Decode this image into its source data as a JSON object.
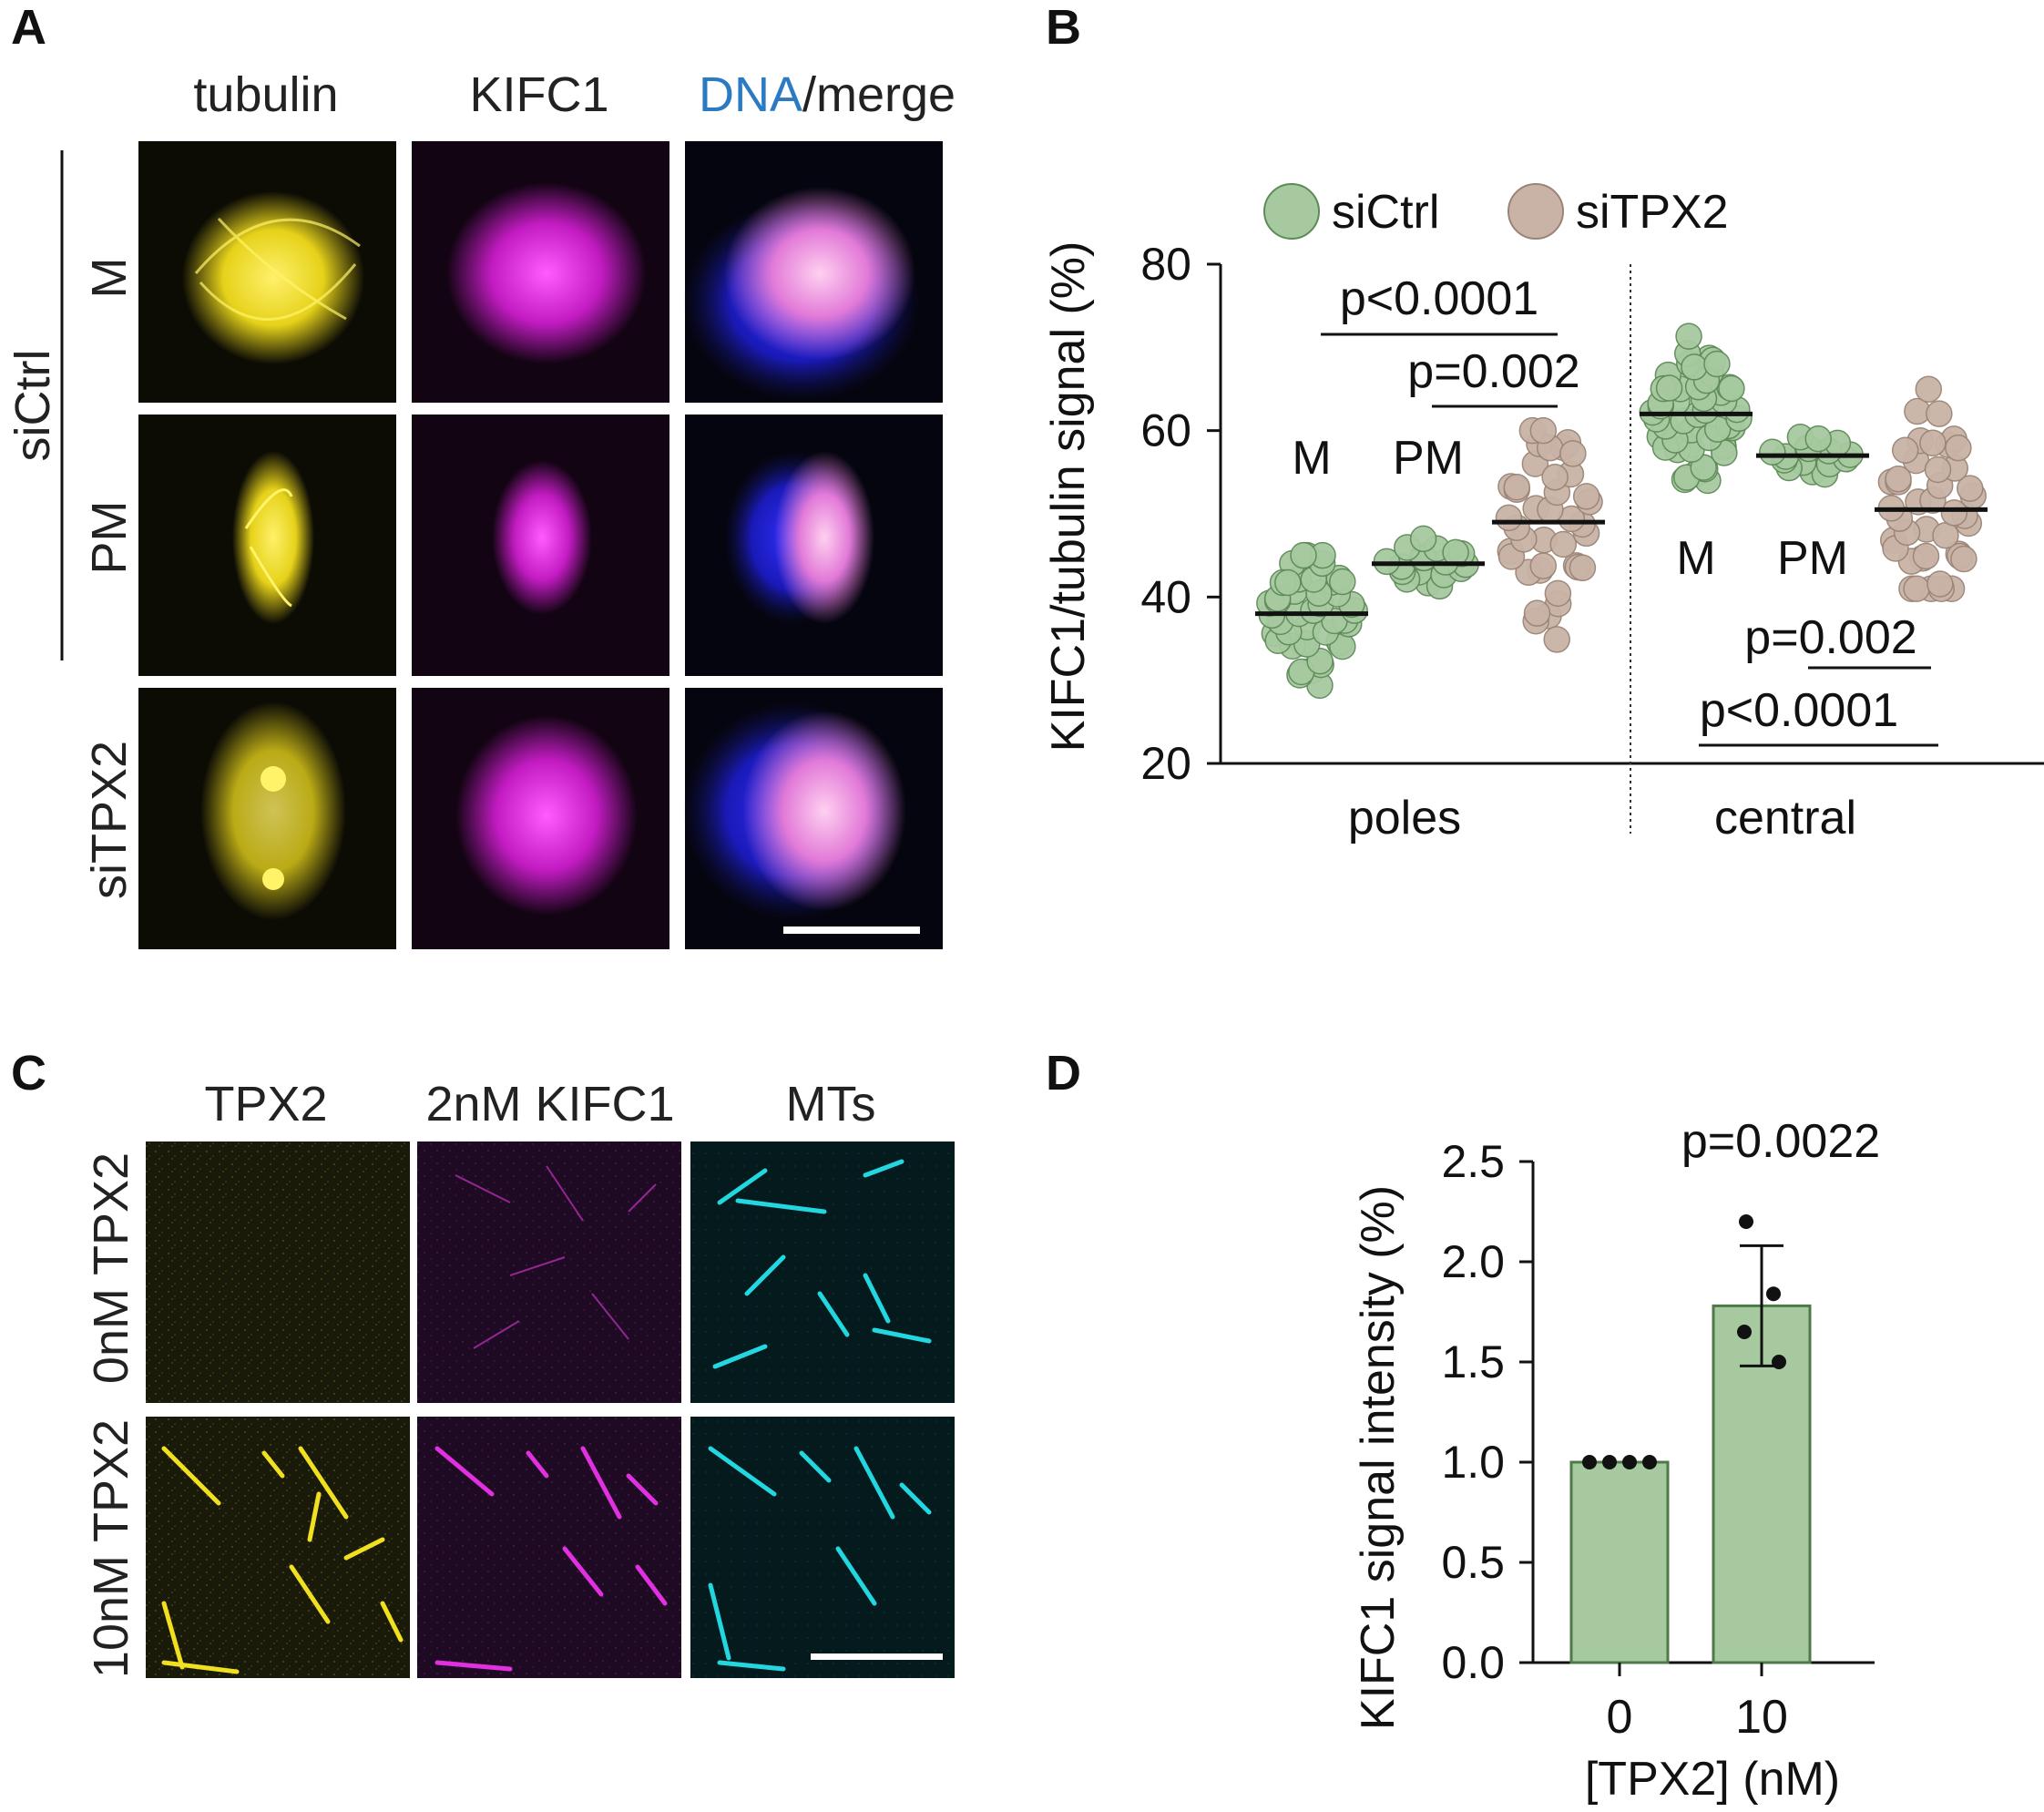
{
  "panels": {
    "a": {
      "letter": "A",
      "columns": [
        "tubulin",
        "KIFC1",
        "DNA",
        "/merge"
      ],
      "rows": {
        "group": "siCtrl",
        "sub": [
          "M",
          "PM"
        ],
        "third": "siTPX2"
      }
    },
    "b": {
      "letter": "B"
    },
    "c": {
      "letter": "C",
      "columns": [
        "TPX2",
        "2nM KIFC1",
        "MTs"
      ],
      "rows": [
        "0nM TPX2",
        "10nM TPX2"
      ]
    },
    "d": {
      "letter": "D"
    }
  },
  "colors": {
    "siCtrl": "#a6c9a0",
    "siTPX2": "#c9b3a6",
    "bar_fill": "#a6c9a0",
    "bar_edge": "#4e7a48",
    "dna_label": "#2a7bc4",
    "tubulin": "#e6d21a",
    "kifc1": "#d81fd8",
    "mts": "#23d7e0"
  },
  "chart_data": [
    {
      "type": "scatter",
      "ylabel": "KIFC1/tubulin signal (%)",
      "ylim": [
        20,
        80
      ],
      "yticks": [
        20,
        40,
        60,
        80
      ],
      "categories": [
        "poles",
        "central"
      ],
      "legend": [
        "siCtrl",
        "siTPX2"
      ],
      "legend_position": "top",
      "groups": [
        {
          "category": "poles",
          "label": "M",
          "series": "siCtrl",
          "mean": 38
        },
        {
          "category": "poles",
          "label": "PM",
          "series": "siCtrl",
          "mean": 44
        },
        {
          "category": "poles",
          "label": "",
          "series": "siTPX2",
          "mean": 49
        },
        {
          "category": "central",
          "label": "M",
          "series": "siCtrl",
          "mean": 62
        },
        {
          "category": "central",
          "label": "PM",
          "series": "siCtrl",
          "mean": 57
        },
        {
          "category": "central",
          "label": "",
          "series": "siTPX2",
          "mean": 50.5
        }
      ],
      "annotations": [
        "p<0.0001",
        "p=0.002",
        "p=0.002",
        "p<0.0001"
      ]
    },
    {
      "type": "bar",
      "categories": [
        "0",
        "10"
      ],
      "values": [
        1.0,
        1.78
      ],
      "error": [
        0,
        0.3
      ],
      "points": [
        [
          1.0,
          1.0,
          1.0,
          1.0
        ],
        [
          2.2,
          1.84,
          1.65,
          1.5
        ]
      ],
      "ylabel": "KIFC1 signal intensity (%)",
      "xlabel": "[TPX2] (nM)",
      "ylim": [
        0,
        2.5
      ],
      "yticks": [
        "0.0",
        "0.5",
        "1.0",
        "1.5",
        "2.0",
        "2.5"
      ],
      "annotation": "p=0.0022"
    }
  ]
}
